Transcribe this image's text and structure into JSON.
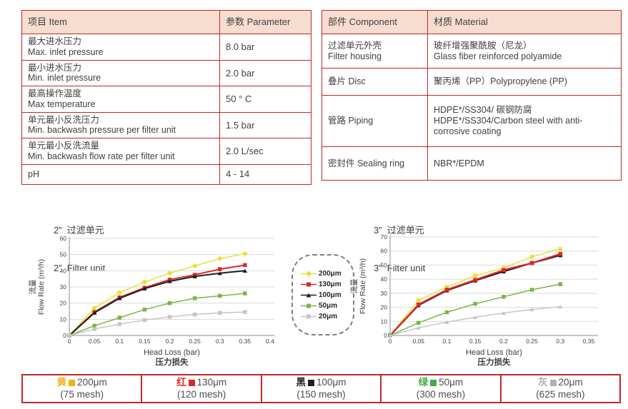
{
  "colors": {
    "table_border": "#bc2a28",
    "header_bg": "#f7dcd0",
    "grid": "#d9d9d9",
    "axis": "#8c8c8c",
    "text": "#3f3f3f"
  },
  "spec_table": {
    "headers": [
      "项目 Item",
      "参数 Parameter"
    ],
    "rows": [
      {
        "item_zh": "最大进水压力",
        "item_en": "Max. inlet pressure",
        "value": "8.0 bar"
      },
      {
        "item_zh": "最小进水压力",
        "item_en": "Min. inlet pressure",
        "value": "2.0 bar"
      },
      {
        "item_zh": "最高操作温度",
        "item_en": "Max temperature",
        "value": "50 ° C"
      },
      {
        "item_zh": "单元最小反洗压力",
        "item_en": "Min. backwash pressure per filter unit",
        "value": "1.5 bar"
      },
      {
        "item_zh": "单元最小反洗流量",
        "item_en": "Min. backwash flow rate per filter unit",
        "value": "2.0 L/sec"
      },
      {
        "item_zh": "pH",
        "item_en": "",
        "value": "4 - 14"
      }
    ]
  },
  "material_table": {
    "headers": [
      "部件 Component",
      "材质 Material"
    ],
    "rows": [
      {
        "comp_zh": "过滤单元外壳",
        "comp_en": "Filter housing",
        "mat_zh": "玻纤增强聚酰胺（尼龙）",
        "mat_en": "Glass fiber reinforced polyamide"
      },
      {
        "comp_zh": "叠片 Disc",
        "comp_en": "",
        "mat_zh": "聚丙烯（PP）Polypropylene (PP)",
        "mat_en": ""
      },
      {
        "comp_zh": "管路 Piping",
        "comp_en": "",
        "mat_zh": "HDPE*/SS304/ 碳钢防腐",
        "mat_en": "HDPE*/SS304/Carbon steel with anti-corrosive coating"
      },
      {
        "comp_zh": "密封件 Sealing ring",
        "comp_en": "",
        "mat_zh": "NBR*/EPDM",
        "mat_en": ""
      }
    ]
  },
  "chart_data": [
    {
      "type": "line",
      "title_zh": "2”  过滤单元",
      "title_en": "2”  Filter unit",
      "xlabel": "Head Loss (bar)",
      "xlabel_zh": "压力损失",
      "ylabel_zh": "流量",
      "ylabel": "Flow Rate (m³/h)",
      "xlim": [
        0,
        0.4
      ],
      "ylim": [
        0,
        60
      ],
      "xticks": [
        "0",
        "0.05",
        "0.1",
        "0.15",
        "0.2",
        "0.25",
        "0.3",
        "0.35",
        "0.4"
      ],
      "yticks": [
        "0",
        "10",
        "20",
        "30",
        "40",
        "50",
        "60"
      ],
      "x": [
        0,
        0.05,
        0.1,
        0.15,
        0.2,
        0.25,
        0.3,
        0.35
      ],
      "grid": true,
      "legend_position": "right-outside",
      "series": [
        {
          "name": "200μm",
          "color": "#e6e13c",
          "marker": "diamond",
          "stroke_width": 1.5,
          "values": [
            0,
            17,
            26.5,
            33,
            38.5,
            43,
            47.5,
            50.5
          ]
        },
        {
          "name": "130μm",
          "color": "#e02826",
          "marker": "square",
          "stroke_width": 2,
          "values": [
            0,
            14.5,
            23.5,
            29.5,
            34.5,
            37.5,
            41,
            43.5
          ]
        },
        {
          "name": "100μm",
          "color": "#1f1f1f",
          "marker": "triangle",
          "stroke_width": 2,
          "values": [
            0,
            14,
            23,
            29,
            33.5,
            36.5,
            38.5,
            40
          ]
        },
        {
          "name": "50μm",
          "color": "#7ab648",
          "marker": "square",
          "stroke_width": 1.5,
          "values": [
            0,
            6,
            11,
            16,
            20,
            23,
            24.5,
            26
          ]
        },
        {
          "name": "20μm",
          "color": "#c6c6c6",
          "marker": "square",
          "stroke_width": 1.5,
          "values": [
            0,
            4,
            7,
            9.5,
            11.5,
            13,
            14,
            14.5
          ]
        }
      ]
    },
    {
      "type": "line",
      "title_zh": "3”  过滤单元",
      "title_en": "3”  Filter unit",
      "xlabel": "Head Loss (bar)",
      "xlabel_zh": "压力损失",
      "ylabel_zh": "流量",
      "ylabel": "Flow Rate (m³/h)",
      "xlim": [
        0,
        0.35
      ],
      "ylim": [
        0,
        70
      ],
      "xticks": [
        "0",
        "0.05",
        "0.1",
        "0.15",
        "0.2",
        "0.25",
        "0.3",
        "0.35"
      ],
      "yticks": [
        "0",
        "10",
        "20",
        "30",
        "40",
        "50",
        "60",
        "70"
      ],
      "x": [
        0,
        0.05,
        0.1,
        0.15,
        0.2,
        0.25,
        0.3
      ],
      "grid": true,
      "series": [
        {
          "name": "200μm",
          "color": "#e6e13c",
          "marker": "square",
          "stroke_width": 1.5,
          "values": [
            0,
            25,
            34.5,
            42.5,
            48,
            56,
            61.5
          ]
        },
        {
          "name": "100μm",
          "color": "#1f1f1f",
          "marker": "square",
          "stroke_width": 2.2,
          "values": [
            0,
            21.5,
            32,
            39,
            45.5,
            51.5,
            57
          ]
        },
        {
          "name": "130μm",
          "color": "#e02826",
          "marker": "square",
          "stroke_width": 2.2,
          "values": [
            0,
            22,
            32.5,
            39.5,
            46.5,
            51.5,
            58
          ]
        },
        {
          "name": "50μm",
          "color": "#7ab648",
          "marker": "square",
          "stroke_width": 1.5,
          "values": [
            0,
            9,
            16.5,
            22.5,
            27.5,
            32.5,
            36.5
          ]
        },
        {
          "name": "20μm",
          "color": "#c6c6c6",
          "marker": "triangle",
          "stroke_width": 1.5,
          "values": [
            0,
            5.5,
            9.5,
            13,
            16,
            18.5,
            20.5
          ]
        }
      ]
    }
  ],
  "mid_legend": {
    "items": [
      {
        "label": "200μm",
        "color": "#e6e13c",
        "marker": "diamond"
      },
      {
        "label": "130μm",
        "color": "#e02826",
        "marker": "square"
      },
      {
        "label": "100μm",
        "color": "#1f1f1f",
        "marker": "triangle"
      },
      {
        "label": "50μm",
        "color": "#7ab648",
        "marker": "square"
      },
      {
        "label": "20μm",
        "color": "#c6c6c6",
        "marker": "square"
      }
    ]
  },
  "bottom_legend": {
    "cells": [
      {
        "name_zh": "黄",
        "swatch": "#f0b11c",
        "label": "200μm",
        "mesh": "(75 mesh)"
      },
      {
        "name_zh": "红",
        "swatch": "#e02826",
        "label": "130μm",
        "mesh": "(120 mesh)"
      },
      {
        "name_zh": "黑",
        "swatch": "#1f1f1f",
        "label": "100μm",
        "mesh": "(150 mesh)"
      },
      {
        "name_zh": "绿",
        "swatch": "#3faa4c",
        "label": "50μm",
        "mesh": "(300 mesh)"
      },
      {
        "name_zh": "灰",
        "swatch": "#b0b0b0",
        "label": "20μm",
        "mesh": "(625 mesh)"
      }
    ]
  }
}
